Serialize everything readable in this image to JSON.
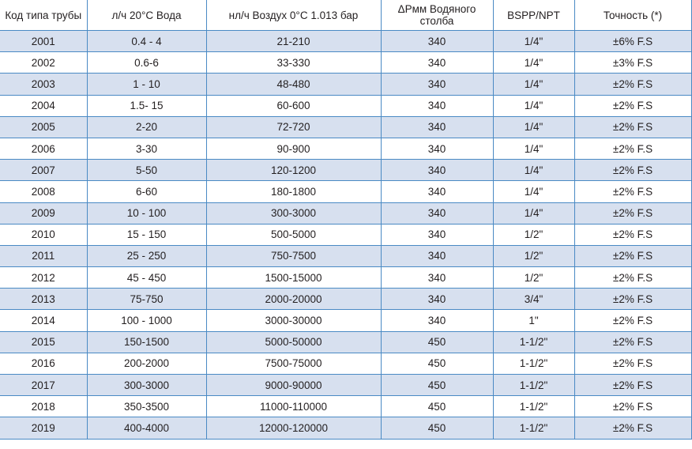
{
  "headers": [
    "Код типа трубы",
    "л/ч 20°C Вода",
    "нл/ч Воздух 0°C 1.013 бар",
    "ΔPмм Водяного столба",
    "BSPP/NPT",
    "Точность (*)"
  ],
  "rows": [
    [
      "2001",
      "0.4 - 4",
      "21-210",
      "340",
      "1/4\"",
      "±6% F.S"
    ],
    [
      "2002",
      "0.6-6",
      "33-330",
      "340",
      "1/4\"",
      "±3% F.S"
    ],
    [
      "2003",
      "1 - 10",
      "48-480",
      "340",
      "1/4\"",
      "±2% F.S"
    ],
    [
      "2004",
      "1.5- 15",
      "60-600",
      "340",
      "1/4\"",
      "±2% F.S"
    ],
    [
      "2005",
      "2-20",
      "72-720",
      "340",
      "1/4\"",
      "±2% F.S"
    ],
    [
      "2006",
      "3-30",
      "90-900",
      "340",
      "1/4\"",
      "±2% F.S"
    ],
    [
      "2007",
      "5-50",
      "120-1200",
      "340",
      "1/4\"",
      "±2% F.S"
    ],
    [
      "2008",
      "6-60",
      "180-1800",
      "340",
      "1/4\"",
      "±2% F.S"
    ],
    [
      "2009",
      "10 - 100",
      "300-3000",
      "340",
      "1/4\"",
      "±2% F.S"
    ],
    [
      "2010",
      "15 - 150",
      "500-5000",
      "340",
      "1/2\"",
      "±2% F.S"
    ],
    [
      "2011",
      "25 - 250",
      "750-7500",
      "340",
      "1/2\"",
      "±2% F.S"
    ],
    [
      "2012",
      "45 - 450",
      "1500-15000",
      "340",
      "1/2\"",
      "±2% F.S"
    ],
    [
      "2013",
      "75-750",
      "2000-20000",
      "340",
      "3/4\"",
      "±2% F.S"
    ],
    [
      "2014",
      "100 - 1000",
      "3000-30000",
      "340",
      "1\"",
      "±2% F.S"
    ],
    [
      "2015",
      "150-1500",
      "5000-50000",
      "450",
      "1-1/2\"",
      "±2% F.S"
    ],
    [
      "2016",
      "200-2000",
      "7500-75000",
      "450",
      "1-1/2\"",
      "±2% F.S"
    ],
    [
      "2017",
      "300-3000",
      "9000-90000",
      "450",
      "1-1/2\"",
      "±2% F.S"
    ],
    [
      "2018",
      "350-3500",
      "11000-110000",
      "450",
      "1-1/2\"",
      "±2% F.S"
    ],
    [
      "2019",
      "400-4000",
      "12000-120000",
      "450",
      "1-1/2\"",
      "±2% F.S"
    ]
  ],
  "colors": {
    "border": "#4a8ac4",
    "alt_row": "#d7e0ef"
  }
}
